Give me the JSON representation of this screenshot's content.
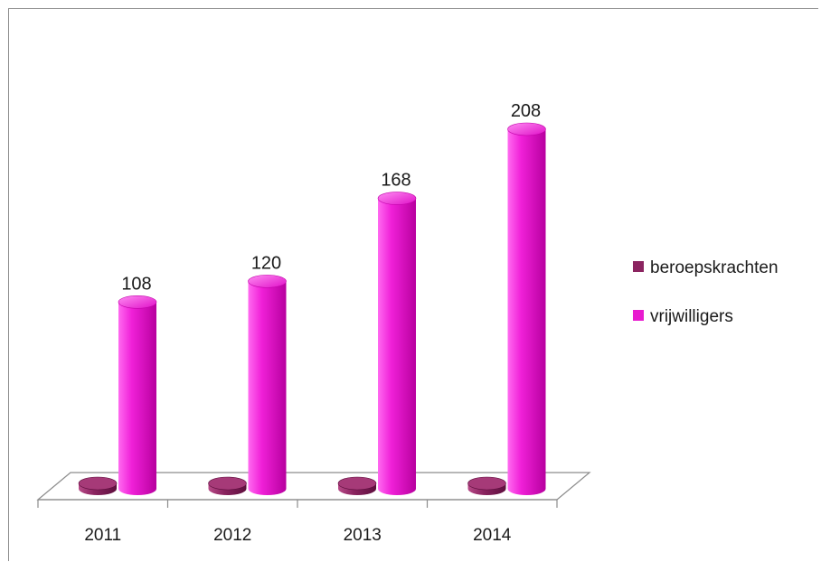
{
  "chart_data": {
    "type": "bar",
    "style": "3d-cylinder",
    "title": "",
    "xlabel": "",
    "ylabel": "",
    "categories": [
      "2011",
      "2012",
      "2013",
      "2014"
    ],
    "series": [
      {
        "name": "beroepskrachten",
        "values": [
          0,
          0,
          0,
          0
        ],
        "color": "#8b2460",
        "show_labels": false
      },
      {
        "name": "vrijwilligers",
        "values": [
          108,
          120,
          168,
          208
        ],
        "color": "#e81bcf",
        "show_labels": true
      }
    ],
    "ylim": [
      0,
      208
    ],
    "grid": false,
    "legend_position": "right"
  }
}
